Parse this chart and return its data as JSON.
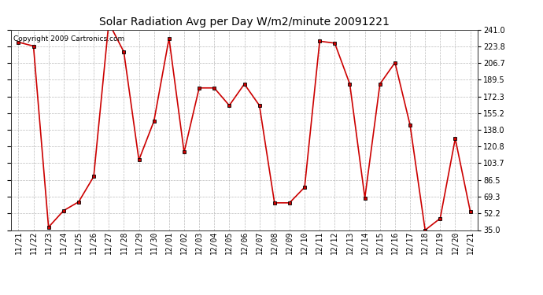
{
  "title": "Solar Radiation Avg per Day W/m2/minute 20091221",
  "copyright_text": "Copyright 2009 Cartronics.com",
  "labels": [
    "11/21",
    "11/22",
    "11/23",
    "11/24",
    "11/25",
    "11/26",
    "11/27",
    "11/28",
    "11/29",
    "11/30",
    "12/01",
    "12/02",
    "12/03",
    "12/04",
    "12/05",
    "12/06",
    "12/07",
    "12/08",
    "12/09",
    "12/10",
    "12/11",
    "12/12",
    "12/13",
    "12/14",
    "12/15",
    "12/16",
    "12/17",
    "12/18",
    "12/19",
    "12/20",
    "12/21"
  ],
  "values": [
    228,
    224,
    38,
    55,
    64,
    90,
    248,
    218,
    107,
    147,
    232,
    115,
    181,
    181,
    163,
    185,
    163,
    63,
    63,
    79,
    229,
    227,
    185,
    68,
    185,
    207,
    143,
    35,
    47,
    129,
    54
  ],
  "y_ticks": [
    35.0,
    52.2,
    69.3,
    86.5,
    103.7,
    120.8,
    138.0,
    155.2,
    172.3,
    189.5,
    206.7,
    223.8,
    241.0
  ],
  "ylim": [
    35.0,
    241.0
  ],
  "line_color": "#cc0000",
  "marker_color": "#000000",
  "bg_color": "#ffffff",
  "plot_bg_color": "#ffffff",
  "grid_color": "#aaaaaa",
  "title_fontsize": 10,
  "tick_fontsize": 7,
  "copyright_fontsize": 6.5
}
